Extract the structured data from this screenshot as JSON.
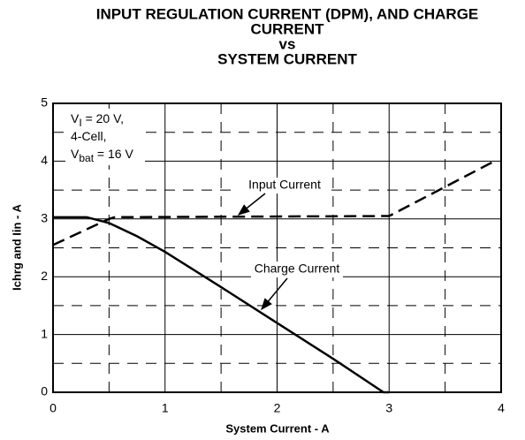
{
  "chart_data": {
    "type": "line",
    "title_lines": [
      "INPUT REGULATION CURRENT (DPM), AND CHARGE",
      "CURRENT",
      "vs",
      "SYSTEM CURRENT"
    ],
    "x_label": "System Current - A",
    "y_label": "Ichrg and Iin - A",
    "conditions": [
      [
        "V",
        "I",
        " = 20 V,"
      ],
      [
        "4-Cell,"
      ],
      [
        "V",
        "bat",
        " = 16 V"
      ]
    ],
    "xlim": [
      0,
      4
    ],
    "xticks": [
      0,
      1,
      2,
      3,
      4
    ],
    "ylim": [
      0,
      5
    ],
    "yticks": [
      0,
      1,
      2,
      3,
      4,
      5
    ],
    "grid": true,
    "series": [
      {
        "name": "Input Current",
        "color": "#000000",
        "dashed": true,
        "x": [
          0,
          0.5,
          0.55,
          2.95,
          3.0,
          3.93
        ],
        "values": [
          2.55,
          3.0,
          3.03,
          3.05,
          3.05,
          3.99
        ]
      },
      {
        "name": "Charge Current",
        "color": "#000000",
        "dashed": false,
        "x": [
          0,
          0.3,
          0.5,
          0.75,
          1,
          1.5,
          2,
          2.5,
          2.95,
          3.0
        ],
        "values": [
          3.03,
          3.03,
          2.93,
          2.7,
          2.43,
          1.82,
          1.2,
          0.58,
          0,
          0
        ]
      }
    ]
  }
}
